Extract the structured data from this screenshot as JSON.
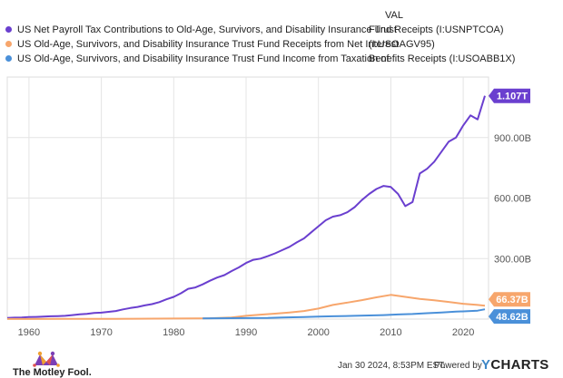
{
  "legend": {
    "val_header": "VAL",
    "items": [
      {
        "name": "US Net Payroll Tax Contributions to Old-Age, Survivors, and Disability Insurance Trust",
        "val": "Fund Receipts (I:USNPTCOA)",
        "color": "#6a3fcf"
      },
      {
        "name": "US Old-Age, Survivors, and Disability Insurance Trust Fund Receipts from Net Interest",
        "val": "(I:USOAGV95)",
        "color": "#f7a66c"
      },
      {
        "name": "US Old-Age, Survivors, and Disability Insurance Trust Fund Income from Taxation of",
        "val": "Benefits Receipts (I:USOABB1X)",
        "color": "#4a90d9"
      }
    ]
  },
  "chart_data": {
    "type": "line",
    "xlim": [
      1957,
      2023.5
    ],
    "ylim": [
      0,
      1200
    ],
    "y_unit": "B",
    "x_ticks": [
      1960,
      1970,
      1980,
      1990,
      2000,
      2010,
      2020
    ],
    "y_ticks": [
      {
        "value": 300,
        "label": "300.00B"
      },
      {
        "value": 600,
        "label": "600.00B"
      },
      {
        "value": 900,
        "label": "900.00B"
      }
    ],
    "grid": true,
    "series": [
      {
        "name": "US Net Payroll Tax Contributions to Old-Age, Survivors, and Disability Insurance Trust Fund Receipts (I:USNPTCOA)",
        "color": "#6a3fcf",
        "end_label": "1.107T",
        "points": [
          [
            1957,
            6
          ],
          [
            1958,
            7
          ],
          [
            1959,
            8
          ],
          [
            1960,
            10
          ],
          [
            1961,
            11
          ],
          [
            1962,
            12
          ],
          [
            1963,
            14
          ],
          [
            1964,
            15
          ],
          [
            1965,
            16
          ],
          [
            1966,
            20
          ],
          [
            1967,
            24
          ],
          [
            1968,
            26
          ],
          [
            1969,
            30
          ],
          [
            1970,
            32
          ],
          [
            1971,
            36
          ],
          [
            1972,
            40
          ],
          [
            1973,
            48
          ],
          [
            1974,
            55
          ],
          [
            1975,
            60
          ],
          [
            1976,
            68
          ],
          [
            1977,
            74
          ],
          [
            1978,
            84
          ],
          [
            1979,
            98
          ],
          [
            1980,
            110
          ],
          [
            1981,
            128
          ],
          [
            1982,
            150
          ],
          [
            1983,
            157
          ],
          [
            1984,
            172
          ],
          [
            1985,
            190
          ],
          [
            1986,
            206
          ],
          [
            1987,
            218
          ],
          [
            1988,
            238
          ],
          [
            1989,
            256
          ],
          [
            1990,
            278
          ],
          [
            1991,
            294
          ],
          [
            1992,
            300
          ],
          [
            1993,
            312
          ],
          [
            1994,
            326
          ],
          [
            1995,
            342
          ],
          [
            1996,
            358
          ],
          [
            1997,
            380
          ],
          [
            1998,
            400
          ],
          [
            1999,
            430
          ],
          [
            2000,
            460
          ],
          [
            2001,
            490
          ],
          [
            2002,
            508
          ],
          [
            2003,
            515
          ],
          [
            2004,
            530
          ],
          [
            2005,
            555
          ],
          [
            2006,
            590
          ],
          [
            2007,
            620
          ],
          [
            2008,
            645
          ],
          [
            2009,
            660
          ],
          [
            2010,
            655
          ],
          [
            2011,
            620
          ],
          [
            2012,
            560
          ],
          [
            2013,
            580
          ],
          [
            2014,
            722
          ],
          [
            2015,
            745
          ],
          [
            2016,
            780
          ],
          [
            2017,
            830
          ],
          [
            2018,
            880
          ],
          [
            2019,
            900
          ],
          [
            2020,
            960
          ],
          [
            2021,
            1010
          ],
          [
            2022,
            990
          ],
          [
            2023,
            1107
          ]
        ]
      },
      {
        "name": "US Old-Age, Survivors, and Disability Insurance Trust Fund Receipts from Net Interest (I:USOAGV95)",
        "color": "#f7a66c",
        "end_label": "66.37B",
        "points": [
          [
            1957,
            0.5
          ],
          [
            1960,
            0.6
          ],
          [
            1965,
            0.7
          ],
          [
            1970,
            1
          ],
          [
            1975,
            2
          ],
          [
            1980,
            2.5
          ],
          [
            1983,
            3
          ],
          [
            1985,
            4
          ],
          [
            1988,
            8
          ],
          [
            1990,
            16
          ],
          [
            1992,
            22
          ],
          [
            1994,
            27
          ],
          [
            1996,
            33
          ],
          [
            1998,
            40
          ],
          [
            2000,
            52
          ],
          [
            2002,
            70
          ],
          [
            2004,
            82
          ],
          [
            2006,
            94
          ],
          [
            2008,
            108
          ],
          [
            2010,
            120
          ],
          [
            2012,
            110
          ],
          [
            2014,
            100
          ],
          [
            2016,
            93
          ],
          [
            2018,
            85
          ],
          [
            2020,
            76
          ],
          [
            2022,
            70
          ],
          [
            2023,
            66.37
          ]
        ]
      },
      {
        "name": "US Old-Age, Survivors, and Disability Insurance Trust Fund Income from Taxation of Benefits Receipts (I:USOABB1X)",
        "color": "#4a90d9",
        "end_label": "48.62B",
        "points": [
          [
            1984,
            3
          ],
          [
            1986,
            4
          ],
          [
            1988,
            4.5
          ],
          [
            1990,
            5
          ],
          [
            1993,
            6
          ],
          [
            1995,
            8
          ],
          [
            1998,
            10
          ],
          [
            2000,
            12
          ],
          [
            2002,
            14
          ],
          [
            2005,
            16
          ],
          [
            2007,
            18
          ],
          [
            2009,
            20
          ],
          [
            2011,
            23
          ],
          [
            2013,
            25
          ],
          [
            2015,
            29
          ],
          [
            2017,
            33
          ],
          [
            2019,
            37
          ],
          [
            2020,
            38
          ],
          [
            2021,
            40
          ],
          [
            2022,
            42
          ],
          [
            2023,
            48.62
          ]
        ]
      }
    ]
  },
  "footer": {
    "fool_text": "The Motley Fool.",
    "date": "Jan 30 2024, 8:53PM EST.",
    "powered": "Powered by",
    "ycharts_y": "Y",
    "ycharts_rest": "CHARTS"
  }
}
